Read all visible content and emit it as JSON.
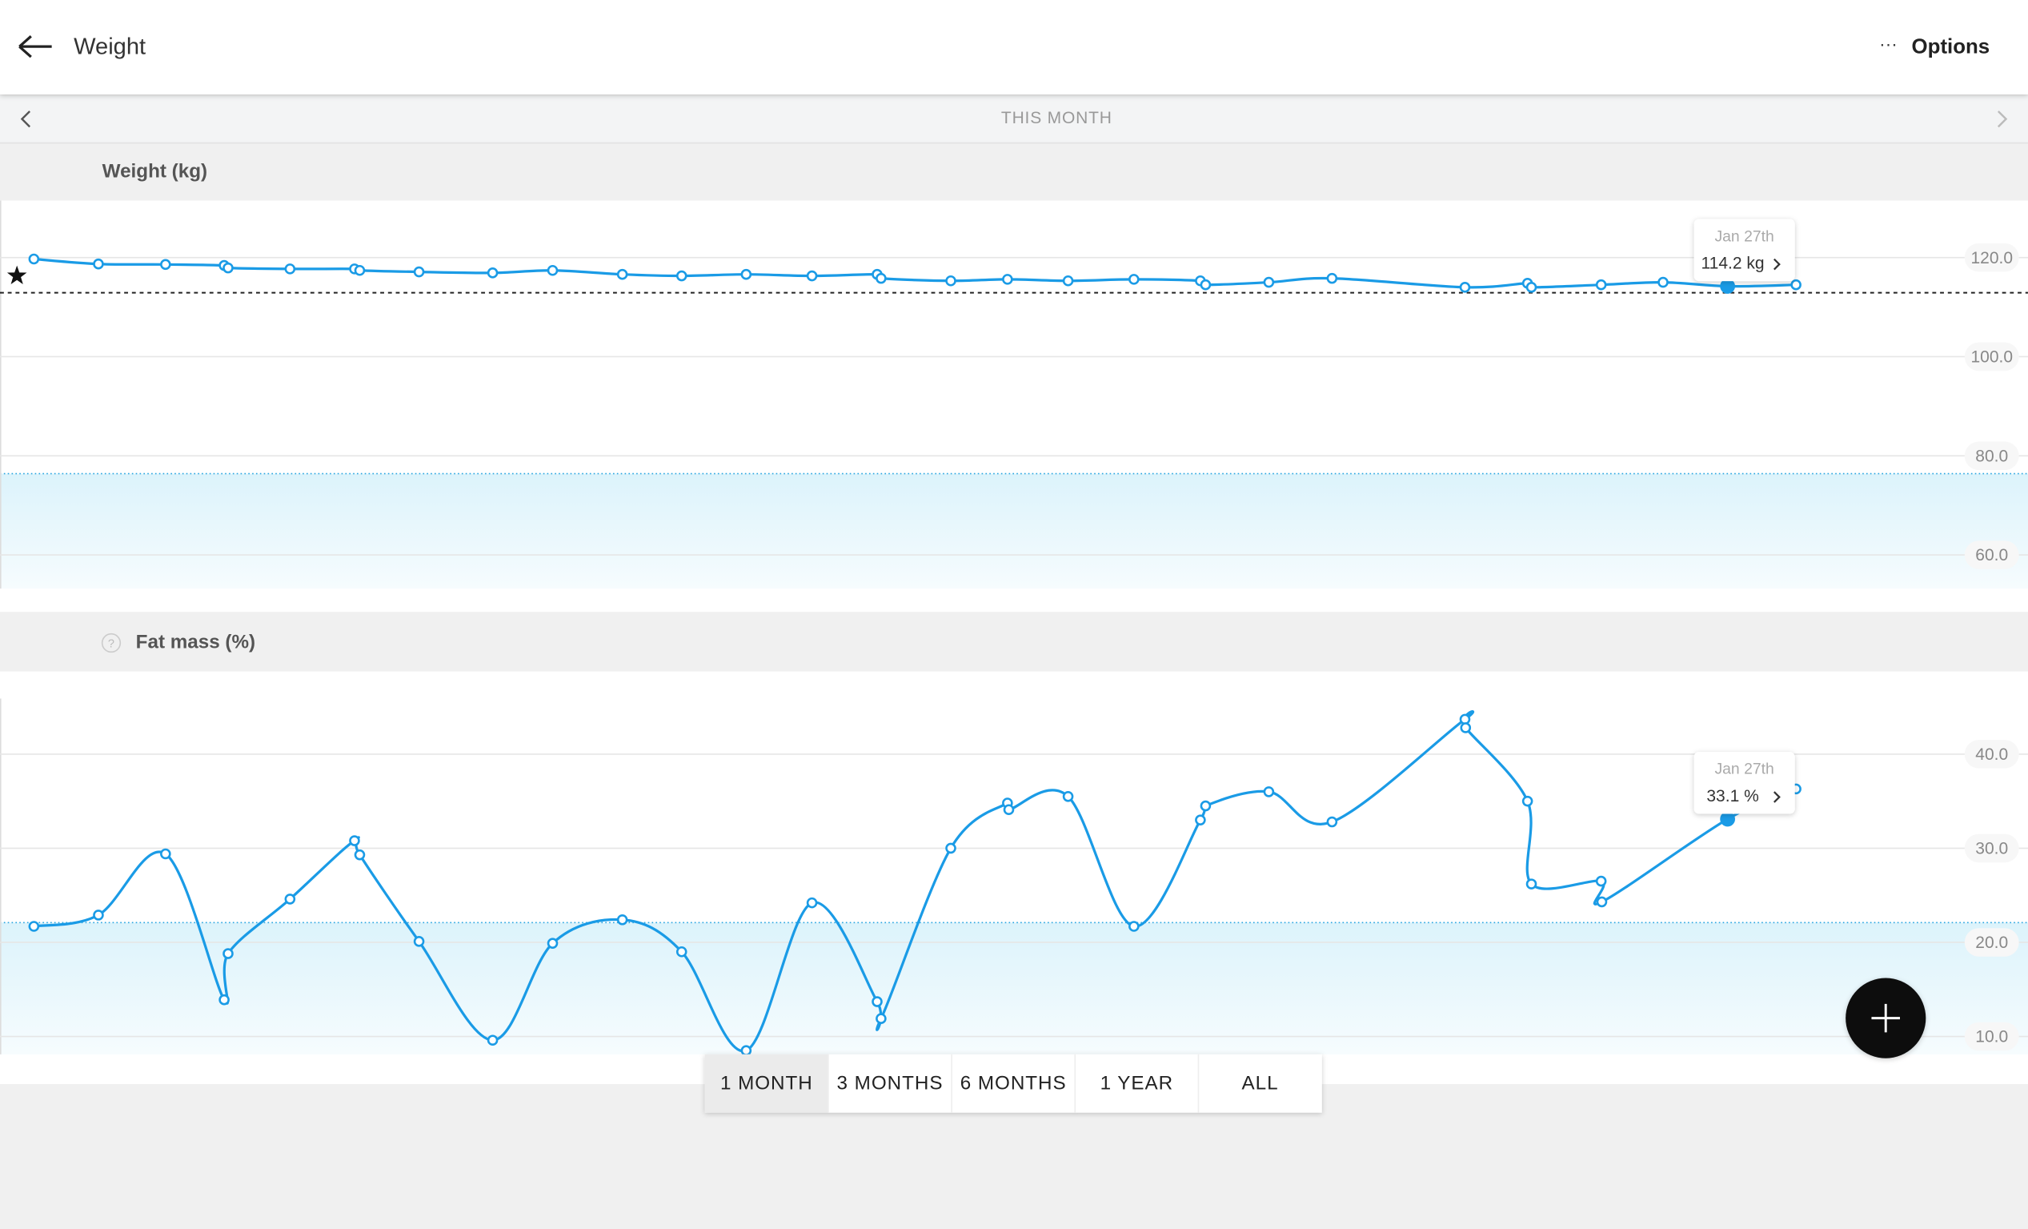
{
  "header": {
    "title": "Weight",
    "menu": "Options"
  },
  "period": {
    "label": "THIS MONTH"
  },
  "range_buttons": {
    "options": [
      "1 MONTH",
      "3 MONTHS",
      "6 MONTHS",
      "1 YEAR",
      "ALL"
    ],
    "selected": 0
  },
  "chart_data": [
    {
      "type": "line",
      "title": "Weight (kg)",
      "color": "#1a9be6",
      "x": [
        1.0,
        1.99,
        3.02,
        3.92,
        3.98,
        4.93,
        5.92,
        6.0,
        6.91,
        8.04,
        8.96,
        10.03,
        10.94,
        11.93,
        12.94,
        13.94,
        14.0,
        15.07,
        15.94,
        16.87,
        17.88,
        18.9,
        18.98,
        19.95,
        20.92,
        22.96,
        23.92,
        23.98,
        25.05,
        26.0,
        26.99,
        28.04
      ],
      "values": [
        119.7,
        118.7,
        118.6,
        118.4,
        117.9,
        117.7,
        117.7,
        117.4,
        117.1,
        116.9,
        117.4,
        116.6,
        116.3,
        116.6,
        116.3,
        116.6,
        115.8,
        115.3,
        115.6,
        115.3,
        115.6,
        115.3,
        114.5,
        115.0,
        115.8,
        114.0,
        114.8,
        114.0,
        114.5,
        115.0,
        114.2,
        114.5
      ],
      "xlim": [
        0.48,
        31.6
      ],
      "ylim": [
        53.2,
        131.5
      ],
      "yticks": [
        {
          "value": 60,
          "label": "60.0"
        },
        {
          "value": 80,
          "label": "80.0"
        },
        {
          "value": 100,
          "label": "100.0"
        },
        {
          "value": 120,
          "label": "120.0"
        }
      ],
      "grid": true,
      "goal": 112.9,
      "start_marker": {
        "x": 0.74,
        "value": 116.3
      },
      "reference_band_top": 76.4,
      "tooltip": {
        "index": 30,
        "date": "Jan 27th",
        "label": "114.2 kg"
      }
    },
    {
      "type": "line",
      "title": "Fat mass (%)",
      "title_icon": "?",
      "color": "#1a9be6",
      "x": [
        1.0,
        1.99,
        3.02,
        3.92,
        3.98,
        4.93,
        5.92,
        6.0,
        6.91,
        8.04,
        8.96,
        10.03,
        10.94,
        11.93,
        12.94,
        13.94,
        14.0,
        15.07,
        15.94,
        15.96,
        16.87,
        17.88,
        18.9,
        18.98,
        19.95,
        20.92,
        22.96,
        22.97,
        23.92,
        23.98,
        25.05,
        25.06,
        26.99,
        28.04
      ],
      "values": [
        21.7,
        22.9,
        29.4,
        13.9,
        18.8,
        24.6,
        30.8,
        29.3,
        20.1,
        9.6,
        19.9,
        22.4,
        19.0,
        8.5,
        24.2,
        13.7,
        11.9,
        30.0,
        34.8,
        34.1,
        35.5,
        21.7,
        33.0,
        34.5,
        36.0,
        32.8,
        43.7,
        42.8,
        35.0,
        26.2,
        26.5,
        24.3,
        33.1,
        36.3
      ],
      "xlim": [
        0.48,
        31.6
      ],
      "ylim": [
        8.1,
        45.9
      ],
      "yticks": [
        {
          "value": 10,
          "label": "10.0"
        },
        {
          "value": 20,
          "label": "20.0"
        },
        {
          "value": 30,
          "label": "30.0"
        },
        {
          "value": 40,
          "label": "40.0"
        }
      ],
      "grid": true,
      "reference_band_top": 22.1,
      "tooltip": {
        "index": 32,
        "date": "Jan 27th",
        "label": "33.1 %"
      }
    }
  ]
}
